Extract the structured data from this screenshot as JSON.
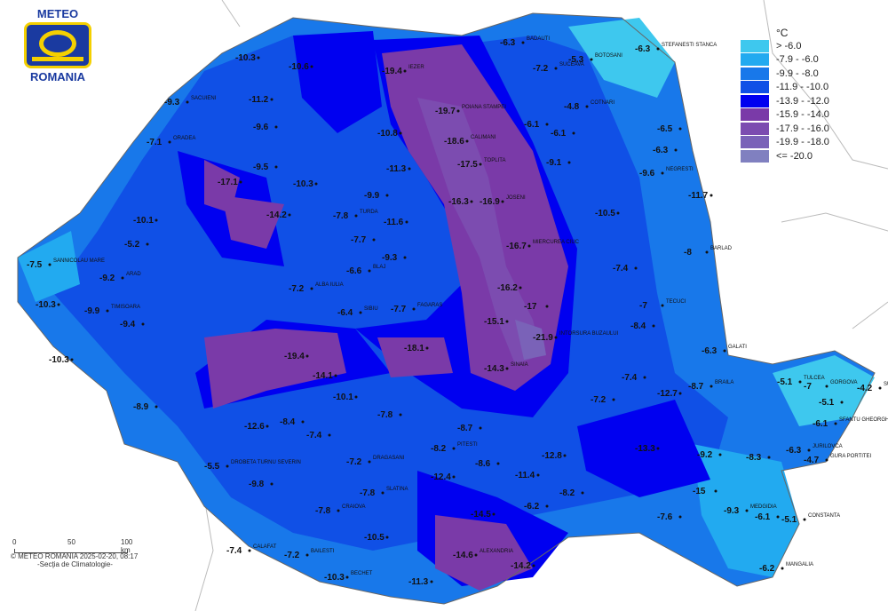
{
  "logo": {
    "line1": "METEO",
    "line2": "ROMANIA"
  },
  "legend": {
    "unit": "°C",
    "classes": [
      {
        "label": "> -6.0",
        "color": "#3ec8ee"
      },
      {
        "label": "-7.9 - -6.0",
        "color": "#22aaf0"
      },
      {
        "label": "-9.9 - -8.0",
        "color": "#1878ea"
      },
      {
        "label": "-11.9 - -10.0",
        "color": "#1050e6"
      },
      {
        "label": "-13.9 - -12.0",
        "color": "#0000f0"
      },
      {
        "label": "-15.9 - -14.0",
        "color": "#7a3aa8"
      },
      {
        "label": "-17.9 - -16.0",
        "color": "#7c4cb0"
      },
      {
        "label": "-19.9 - -18.0",
        "color": "#7a62b8"
      },
      {
        "label": "<= -20.0",
        "color": "#8080c0"
      }
    ]
  },
  "scale_bar": {
    "ticks": [
      "0",
      "50",
      "100 km"
    ]
  },
  "credit": "© METEO ROMANIA 2025-02-20, 08:17",
  "department": "-Secţia de Climatologie-",
  "stations": [
    {
      "name": "IEZER",
      "value": "-19.4"
    },
    {
      "name": "POIANA STAMPEI",
      "value": "-19.7"
    },
    {
      "name": "CALIMANI",
      "value": "-18.6"
    },
    {
      "name": "TOPLITA",
      "value": "-17.5"
    },
    {
      "name": "JOSENI",
      "value": "-16.9"
    },
    {
      "name": "",
      "value": "-16.3"
    },
    {
      "name": "MIERCUREA CIUC",
      "value": "-16.7"
    },
    {
      "name": "",
      "value": "-16.2"
    },
    {
      "name": "",
      "value": "-17"
    },
    {
      "name": "INTORSURA BUZAULUI",
      "value": "-21.9"
    },
    {
      "name": "",
      "value": "-15.1"
    },
    {
      "name": "",
      "value": "-18.1"
    },
    {
      "name": "SINAIA",
      "value": "-14.3"
    },
    {
      "name": "",
      "value": "-19.4"
    },
    {
      "name": "",
      "value": "-14.1"
    },
    {
      "name": "",
      "value": "-17.1"
    },
    {
      "name": "",
      "value": "-14.2"
    },
    {
      "name": "ALEXANDRIA",
      "value": "-14.6"
    },
    {
      "name": "",
      "value": "-14.2"
    },
    {
      "name": "",
      "value": "-14.5"
    },
    {
      "name": "",
      "value": "-15"
    },
    {
      "name": "STEFANESTI STANCA",
      "value": "-6.3"
    },
    {
      "name": "BOTOSANI",
      "value": "-5.3"
    },
    {
      "name": "SUCEAVA",
      "value": "-7.2"
    },
    {
      "name": "COTNARI",
      "value": "-4.8"
    },
    {
      "name": "",
      "value": "-6.1"
    },
    {
      "name": "",
      "value": "-6.5"
    },
    {
      "name": "",
      "value": "-6.3"
    },
    {
      "name": "NEGRESTI",
      "value": "-9.6"
    },
    {
      "name": "",
      "value": "-11.7"
    },
    {
      "name": "",
      "value": "-10.5"
    },
    {
      "name": "BARLAD",
      "value": "-8"
    },
    {
      "name": "",
      "value": "-7.4"
    },
    {
      "name": "TECUCI",
      "value": "-7"
    },
    {
      "name": "",
      "value": "-8.4"
    },
    {
      "name": "GALATI",
      "value": "-6.3"
    },
    {
      "name": "BRAILA",
      "value": "-8.7"
    },
    {
      "name": "",
      "value": "-7.2"
    },
    {
      "name": "",
      "value": "-7.4"
    },
    {
      "name": "TULCEA",
      "value": "-5.1"
    },
    {
      "name": "GORGOVA",
      "value": "-7"
    },
    {
      "name": "SULINA",
      "value": "-4.2"
    },
    {
      "name": "",
      "value": "-5.1"
    },
    {
      "name": "SFANTU GHEORGHE",
      "value": "-6.1"
    },
    {
      "name": "JURILOVCA",
      "value": "-6.3"
    },
    {
      "name": "GURA PORTITEI",
      "value": "-4.7"
    },
    {
      "name": "",
      "value": "-8.3"
    },
    {
      "name": "MEDGIDIA",
      "value": "-9.3"
    },
    {
      "name": "",
      "value": "-6.1"
    },
    {
      "name": "CONSTANTA",
      "value": "-5.1"
    },
    {
      "name": "",
      "value": "-7.6"
    },
    {
      "name": "MANGALIA",
      "value": "-6.2"
    },
    {
      "name": "",
      "value": "-9.2"
    },
    {
      "name": "DRAGASANI",
      "value": "-7.2"
    },
    {
      "name": "SLATINA",
      "value": "-7.8"
    },
    {
      "name": "CRAIOVA",
      "value": "-7.8"
    },
    {
      "name": "",
      "value": "-9.8"
    },
    {
      "name": "DROBETA TURNU SEVERIN",
      "value": "-5.5"
    },
    {
      "name": "CALAFAT",
      "value": "-7.4"
    },
    {
      "name": "BAILESTI",
      "value": "-7.2"
    },
    {
      "name": "",
      "value": "-10.5"
    },
    {
      "name": "BECHET",
      "value": "-10.3"
    },
    {
      "name": "",
      "value": "-11.3"
    },
    {
      "name": "PITESTI",
      "value": "-8.2"
    },
    {
      "name": "",
      "value": "-8.7"
    },
    {
      "name": "",
      "value": "-8.6"
    },
    {
      "name": "SANNICOLAU MARE",
      "value": "-7.5"
    },
    {
      "name": "ARAD",
      "value": "-9.2"
    },
    {
      "name": "",
      "value": "-10.3"
    },
    {
      "name": "TIMISOARA",
      "value": "-9.9"
    },
    {
      "name": "",
      "value": "-9.4"
    },
    {
      "name": "",
      "value": "-10.3"
    },
    {
      "name": "",
      "value": "-5.2"
    },
    {
      "name": "",
      "value": "-10.1"
    },
    {
      "name": "ORADEA",
      "value": "-7.1"
    },
    {
      "name": "SACUIENI",
      "value": "-9.3"
    },
    {
      "name": "",
      "value": "-10.3"
    },
    {
      "name": "",
      "value": "-10.6"
    },
    {
      "name": "",
      "value": "-11.2"
    },
    {
      "name": "",
      "value": "-9.6"
    },
    {
      "name": "",
      "value": "-9.5"
    },
    {
      "name": "",
      "value": "-10.3"
    },
    {
      "name": "",
      "value": "-11.3"
    },
    {
      "name": "",
      "value": "-10.8"
    },
    {
      "name": "",
      "value": "-9.9"
    },
    {
      "name": "",
      "value": "-11.6"
    },
    {
      "name": "TURDA",
      "value": "-7.8"
    },
    {
      "name": "",
      "value": "-7.7"
    },
    {
      "name": "",
      "value": "-9.3"
    },
    {
      "name": "BLAJ",
      "value": "-6.6"
    },
    {
      "name": "ALBA IULIA",
      "value": "-7.2"
    },
    {
      "name": "SIBIU",
      "value": "-6.4"
    },
    {
      "name": "FAGARAS",
      "value": "-7.7"
    },
    {
      "name": "",
      "value": "-8.4"
    },
    {
      "name": "",
      "value": "-7.4"
    },
    {
      "name": "",
      "value": "-12.6"
    },
    {
      "name": "",
      "value": "-10.1"
    },
    {
      "name": "",
      "value": "-7.8"
    },
    {
      "name": "",
      "value": "-8.9"
    },
    {
      "name": "",
      "value": "-12.4"
    },
    {
      "name": "",
      "value": "-11.4"
    },
    {
      "name": "",
      "value": "-8.2"
    },
    {
      "name": "",
      "value": "-6.2"
    },
    {
      "name": "",
      "value": "-12.8"
    },
    {
      "name": "",
      "value": "-12.7"
    },
    {
      "name": "",
      "value": "-13.3"
    },
    {
      "name": "BADAUTI",
      "value": "-6.3"
    },
    {
      "name": "",
      "value": "-9.1"
    },
    {
      "name": "",
      "value": "-6.1"
    }
  ]
}
